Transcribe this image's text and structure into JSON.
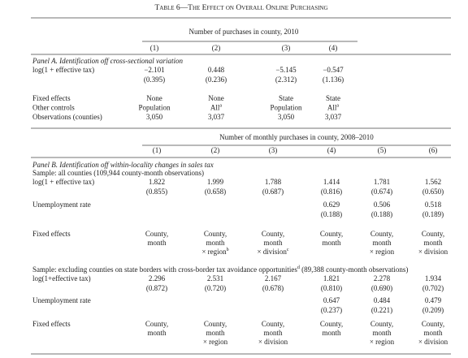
{
  "title": "Table 6—The Effect on Overall Online Purchasing",
  "panel_a": {
    "header": "Number of purchases in county, 2010",
    "columns": [
      "(1)",
      "(2)",
      "(3)",
      "(4)"
    ],
    "label": "Panel A. Identification off cross-sectional variation",
    "rows": [
      {
        "label": "log(1 + effective tax)",
        "values": [
          "−2.101",
          "0.448",
          "−5.145",
          "−0.547"
        ],
        "se": [
          "(0.395)",
          "(0.236)",
          "(2.312)",
          "(1.136)"
        ]
      }
    ],
    "info_rows": [
      {
        "label": "Fixed effects",
        "values": [
          "None",
          "None",
          "State",
          "State"
        ]
      },
      {
        "label": "Other controls",
        "values": [
          "Population",
          {
            "text": "All",
            "sup": "a"
          },
          "Population",
          {
            "text": "All",
            "sup": "a"
          }
        ]
      },
      {
        "label": "Observations (counties)",
        "values": [
          "3,050",
          "3,037",
          "3,050",
          "3,037"
        ]
      }
    ]
  },
  "panel_b": {
    "header": "Number of monthly purchases in county, 2008–2010",
    "columns": [
      "(1)",
      "(2)",
      "(3)",
      "(4)",
      "(5)",
      "(6)"
    ],
    "label": "Panel B. Identification off within-locality changes in sales tax",
    "samples": [
      {
        "label": "Sample: all counties (109,944 county-month observations)",
        "rows": [
          {
            "label": "log(1 + effective tax)",
            "values": [
              "1.822",
              "1.999",
              "1.788",
              "1.414",
              "1.781",
              "1.562"
            ],
            "se": [
              "(0.855)",
              "(0.658)",
              "(0.687)",
              "(0.816)",
              "(0.674)",
              "(0.650)"
            ]
          },
          {
            "label": "Unemployment rate",
            "values": [
              null,
              null,
              null,
              "0.629",
              "0.506",
              "0.518"
            ],
            "se": [
              null,
              null,
              null,
              "(0.188)",
              "(0.188)",
              "(0.189)"
            ]
          }
        ],
        "fixed_effects": {
          "label": "Fixed effects",
          "values": [
            [
              "County,",
              "month"
            ],
            [
              "County,",
              "month",
              {
                "text": "× region",
                "sup": "b"
              }
            ],
            [
              "County,",
              "month",
              {
                "text": "× division",
                "sup": "c"
              }
            ],
            [
              "County,",
              "month"
            ],
            [
              "County,",
              "month",
              "× region"
            ],
            [
              "County,",
              "month",
              "× division"
            ]
          ]
        }
      },
      {
        "label": {
          "text": "Sample: excluding counties on state borders with cross-border tax avoidance opportunities",
          "sup": "d",
          "after": " (89,388 county-month observations)"
        },
        "rows": [
          {
            "label": "log(1+effective tax)",
            "values": [
              "2.296",
              "2.531",
              "2.167",
              "1.821",
              "2.278",
              "1.934"
            ],
            "se": [
              "(0.872)",
              "(0.720)",
              "(0.678)",
              "(0.810)",
              "(0.690)",
              "(0.702)"
            ]
          },
          {
            "label": "Unemployment rate",
            "values": [
              null,
              null,
              null,
              "0.647",
              "0.484",
              "0.479"
            ],
            "se": [
              null,
              null,
              null,
              "(0.237)",
              "(0.221)",
              "(0.209)"
            ]
          }
        ],
        "fixed_effects": {
          "label": "Fixed effects",
          "values": [
            [
              "County,",
              "month"
            ],
            [
              "County,",
              "month",
              "× region"
            ],
            [
              "County,",
              "month",
              "× division"
            ],
            [
              "County,",
              "month"
            ],
            [
              "County,",
              "month",
              "× region"
            ],
            [
              "County,",
              "month",
              "× division"
            ]
          ]
        }
      }
    ]
  }
}
